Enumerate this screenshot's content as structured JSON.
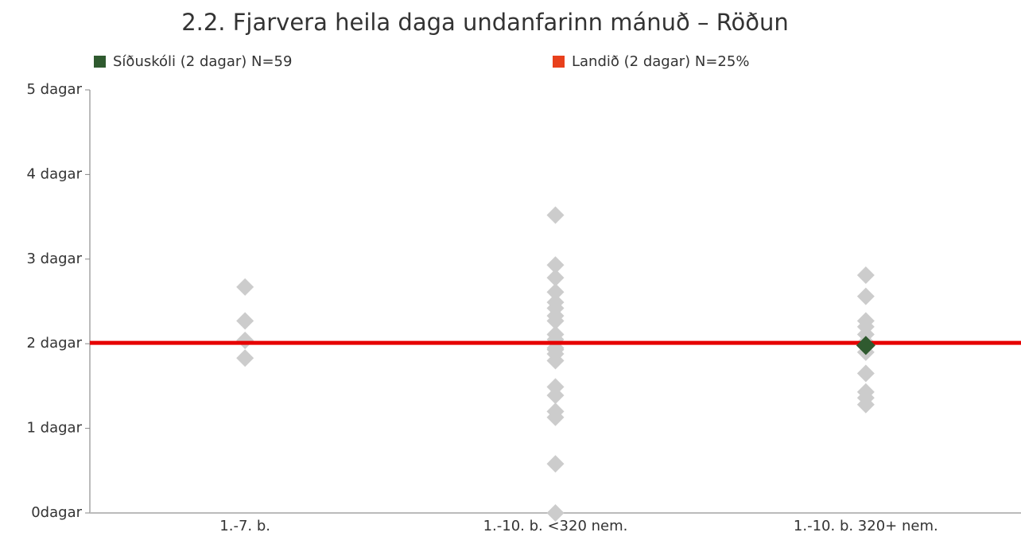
{
  "chart_data": {
    "type": "strip",
    "title": "2.2. Fjarvera heila daga undanfarinn mánuð – Röðun",
    "categories": [
      "1.-7. b.",
      "1.-10. b. <320 nem.",
      "1.-10. b. 320+ nem."
    ],
    "distribution": [
      [
        2.67,
        2.27,
        2.04,
        1.83
      ],
      [
        3.52,
        2.93,
        2.78,
        2.61,
        2.49,
        2.42,
        2.33,
        2.27,
        2.11,
        2.05,
        1.95,
        1.93,
        1.88,
        1.8,
        1.49,
        1.39,
        1.2,
        1.13,
        0.58,
        0.0
      ],
      [
        2.81,
        2.56,
        2.27,
        2.2,
        2.11,
        2.02,
        1.9,
        1.65,
        1.43,
        1.36,
        1.28
      ]
    ],
    "distribution_color": "#cccccc",
    "series": [
      {
        "name": "Síðuskóli (2 dagar) N=59",
        "color": "#2f5a2f",
        "values": [
          null,
          null,
          1.98
        ]
      },
      {
        "name": "Landið (2 dagar) N=25%",
        "color": "#e8401c",
        "line_color": "#e60000",
        "value": 2.01
      }
    ],
    "ylim": [
      0,
      5
    ],
    "yticks": [
      {
        "value": 0,
        "label": "0dagar"
      },
      {
        "value": 1,
        "label": "1 dagar"
      },
      {
        "value": 2,
        "label": "2 dagar"
      },
      {
        "value": 3,
        "label": "3 dagar"
      },
      {
        "value": 4,
        "label": "4 dagar"
      },
      {
        "value": 5,
        "label": "5 dagar"
      }
    ]
  }
}
